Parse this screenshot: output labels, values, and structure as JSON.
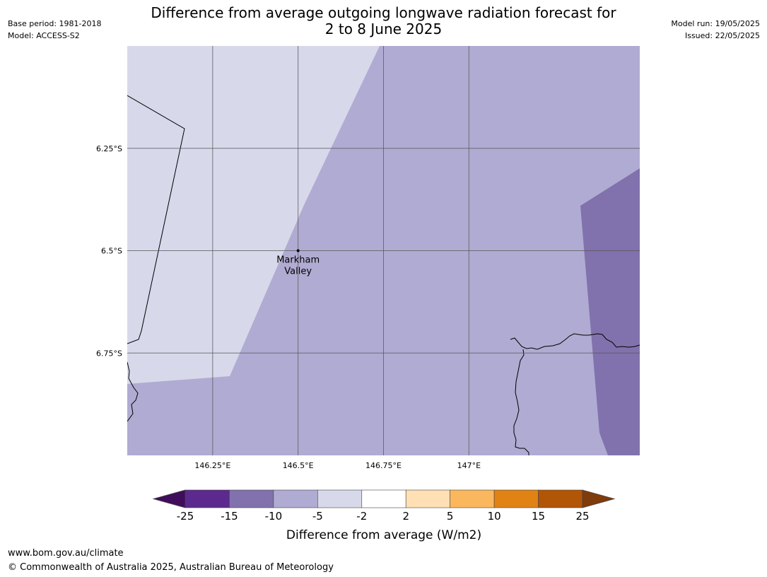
{
  "header": {
    "base_period": "Base period: 1981-2018",
    "model": "Model: ACCESS-S2",
    "model_run": "Model run: 19/05/2025",
    "issued": "Issued: 22/05/2025",
    "title_line1": "Difference from average outgoing longwave radiation forecast for",
    "title_line2": "2 to 8 June 2025"
  },
  "map": {
    "lon_range": [
      146.0,
      147.5
    ],
    "lat_range": [
      -6.0,
      -7.0
    ],
    "lon_ticks": [
      {
        "value": 146.25,
        "label": "146.25°E"
      },
      {
        "value": 146.5,
        "label": "146.5°E"
      },
      {
        "value": 146.75,
        "label": "146.75°E"
      },
      {
        "value": 147.0,
        "label": "147°E"
      }
    ],
    "lat_ticks": [
      {
        "value": -6.25,
        "label": "6.25°S"
      },
      {
        "value": -6.5,
        "label": "6.5°S"
      },
      {
        "value": -6.75,
        "label": "6.75°S"
      }
    ],
    "location": {
      "name_line1": "Markham",
      "name_line2": "Valley",
      "lon": 146.5,
      "lat": -6.5
    },
    "grid": true
  },
  "colorbar": {
    "label": "Difference from average (W/m2)",
    "ticks": [
      "-25",
      "-15",
      "-10",
      "-5",
      "-2",
      "2",
      "5",
      "10",
      "15",
      "25"
    ],
    "colors": [
      "#3f0d5c",
      "#5c2a8e",
      "#8172ad",
      "#b0abd2",
      "#d7d8ea",
      "#ffffff",
      "#fee0b4",
      "#fbb75e",
      "#e08314",
      "#b25506",
      "#7f3b09"
    ]
  },
  "footer": {
    "url": "www.bom.gov.au/climate",
    "copyright": "© Commonwealth of Australia 2025, Australian Bureau of Meteorology"
  }
}
